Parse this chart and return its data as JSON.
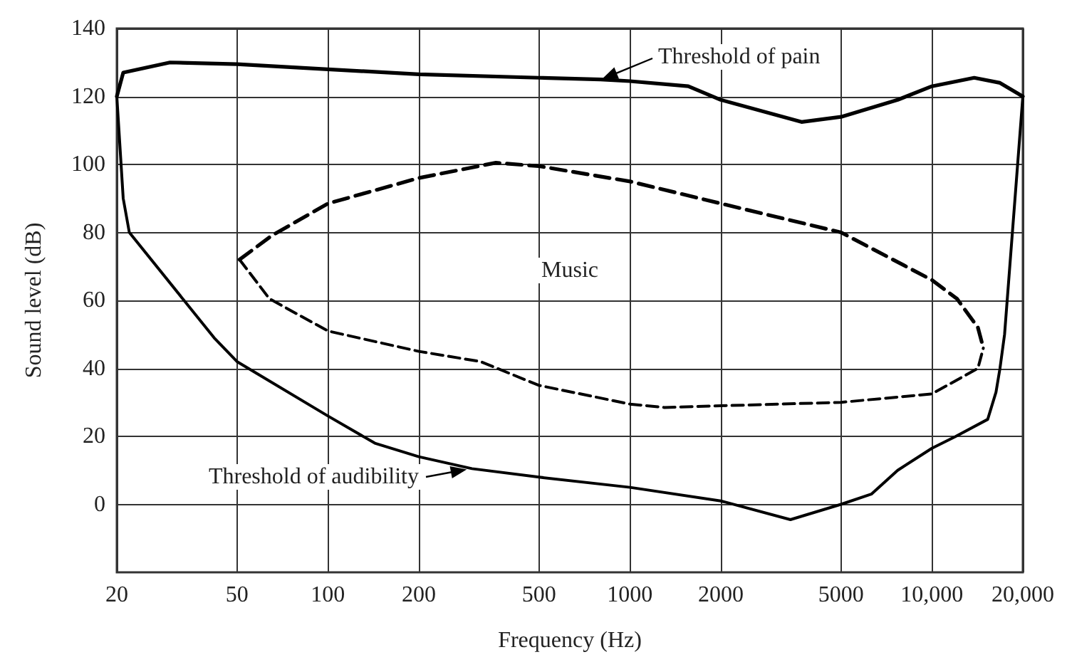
{
  "chart_data": {
    "type": "line",
    "xlabel": "Frequency (Hz)",
    "ylabel": "Sound level (dB)",
    "log": "x",
    "xlim": [
      20,
      20000
    ],
    "xticks": [
      20,
      50,
      100,
      200,
      500,
      1000,
      2000,
      5000,
      {
        "value": 10000,
        "label": "10,000"
      },
      {
        "value": 20000,
        "label": "20,000"
      }
    ],
    "ylim": [
      -20,
      140
    ],
    "yticks": [
      0,
      20,
      40,
      60,
      80,
      100,
      120,
      140
    ],
    "grid": true,
    "marker": "none",
    "series": [
      {
        "name": "Threshold of pain",
        "color": "#000000",
        "line_style": "solid",
        "x": [
          20,
          21,
          30,
          50,
          100,
          200,
          500,
          800,
          1000,
          1560,
          2000,
          3700,
          5000,
          7700,
          10000,
          13800,
          16800,
          20000
        ],
        "values": [
          120,
          127,
          130,
          129.5,
          128,
          126.5,
          125.5,
          125,
          124.5,
          123,
          119,
          112.5,
          114,
          119,
          123,
          125.5,
          124,
          120
        ]
      },
      {
        "name": "Threshold of audibility",
        "color": "#000000",
        "line_style": "solid",
        "x": [
          20,
          21,
          22,
          42,
          50,
          100,
          143,
          200,
          300,
          500,
          1000,
          2000,
          3400,
          5000,
          6300,
          7700,
          10000,
          12000,
          15300,
          16300,
          16800,
          17400,
          20000
        ],
        "values": [
          120,
          90,
          80,
          49,
          42,
          26,
          18,
          14,
          10.5,
          8,
          5,
          1,
          -4.5,
          0,
          3,
          10,
          16.5,
          20,
          25,
          33,
          40,
          50,
          120
        ]
      },
      {
        "color": "#000000",
        "line_style": "dashed",
        "x": [
          51,
          65,
          100,
          200,
          360,
          500,
          1000,
          2000,
          5000,
          10000,
          12100,
          14200,
          14800
        ],
        "values": [
          72,
          79,
          88.5,
          96,
          100.5,
          99.5,
          95,
          88.5,
          80,
          66,
          60.5,
          52,
          46
        ]
      },
      {
        "color": "#000000",
        "line_style": "dashed",
        "x": [
          51,
          64,
          100,
          200,
          320,
          500,
          1000,
          1300,
          2000,
          5000,
          10000,
          14200,
          14800
        ],
        "values": [
          72,
          60.5,
          51,
          45,
          42,
          35,
          29.5,
          28.5,
          29,
          30,
          32.5,
          40,
          46
        ]
      }
    ],
    "annotations": [
      "Music"
    ]
  }
}
